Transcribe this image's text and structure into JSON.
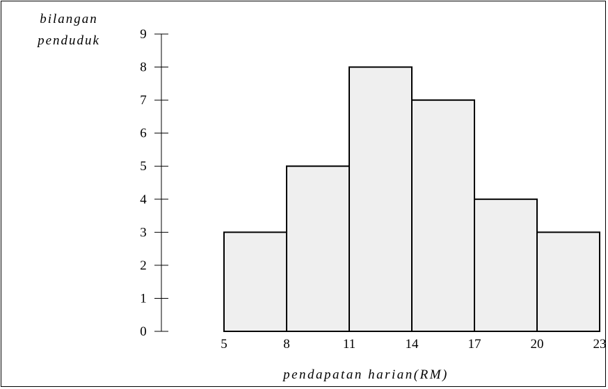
{
  "chart_data": {
    "type": "bar",
    "subtype": "histogram",
    "ylabel_lines": [
      "bilangan",
      "penduduk"
    ],
    "xlabel": "pendapatan harian(RM)",
    "bin_edges": [
      5,
      8,
      11,
      14,
      17,
      20,
      23
    ],
    "values": [
      3,
      5,
      8,
      7,
      4,
      3
    ],
    "x_tick_labels": [
      "5",
      "8",
      "11",
      "14",
      "17",
      "20",
      "23"
    ],
    "y_tick_labels": [
      "0",
      "1",
      "2",
      "3",
      "4",
      "5",
      "6",
      "7",
      "8",
      "9"
    ],
    "xlim": [
      5,
      23
    ],
    "ylim": [
      0,
      9
    ],
    "grid": false,
    "legend": "none",
    "bar_fill": "#efefef",
    "bar_stroke": "#000000"
  }
}
